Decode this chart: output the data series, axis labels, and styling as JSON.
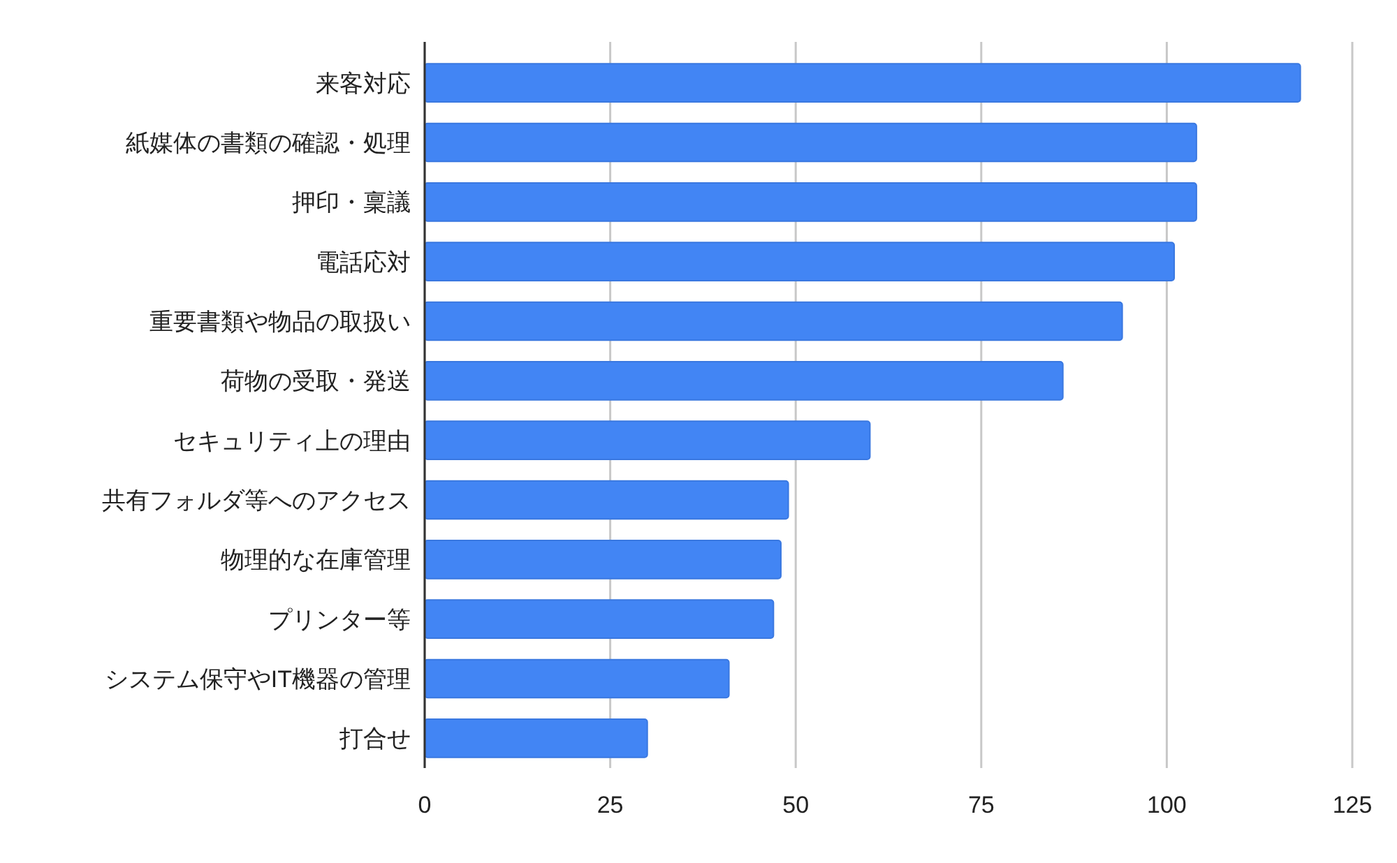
{
  "chart_data": {
    "type": "bar",
    "orientation": "horizontal",
    "categories": [
      "来客対応",
      "紙媒体の書類の確認・処理",
      "押印・稟議",
      "電話応対",
      "重要書類や物品の取扱い",
      "荷物の受取・発送",
      "セキュリティ上の理由",
      "共有フォルダ等へのアクセス",
      "物理的な在庫管理",
      "プリンター等",
      "システム保守やIT機器の管理",
      "打合せ"
    ],
    "values": [
      118,
      104,
      104,
      101,
      94,
      86,
      60,
      49,
      48,
      47,
      41,
      30
    ],
    "color": "#4285f4",
    "xlim": [
      0,
      125
    ],
    "xticks": [
      0,
      25,
      50,
      75,
      100,
      125
    ],
    "grid": "x"
  }
}
